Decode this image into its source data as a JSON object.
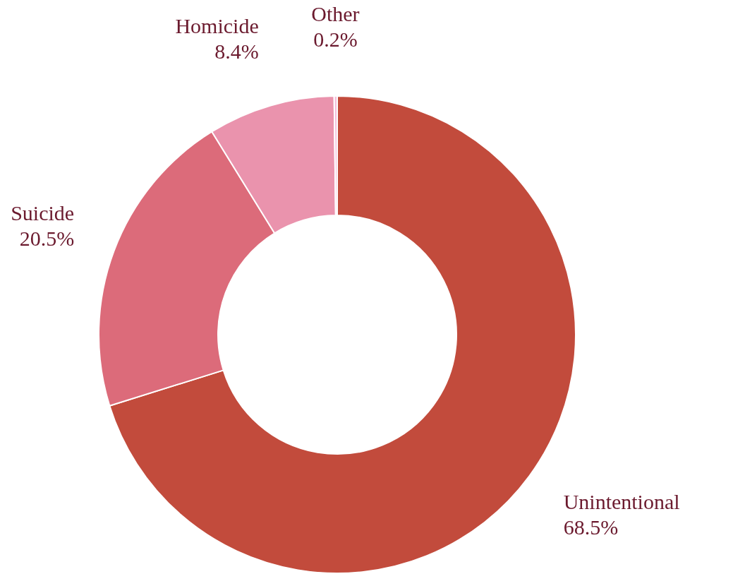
{
  "chart_data": {
    "type": "donut",
    "categories": [
      "Unintentional",
      "Suicide",
      "Homicide",
      "Other"
    ],
    "values": [
      68.5,
      20.5,
      8.4,
      0.2
    ],
    "value_labels": [
      "68.5%",
      "20.5%",
      "8.4%",
      "0.2%"
    ],
    "colors": [
      "#c24b3c",
      "#dc6b7a",
      "#ea93ad",
      "#f4bedb"
    ],
    "legend": false
  }
}
